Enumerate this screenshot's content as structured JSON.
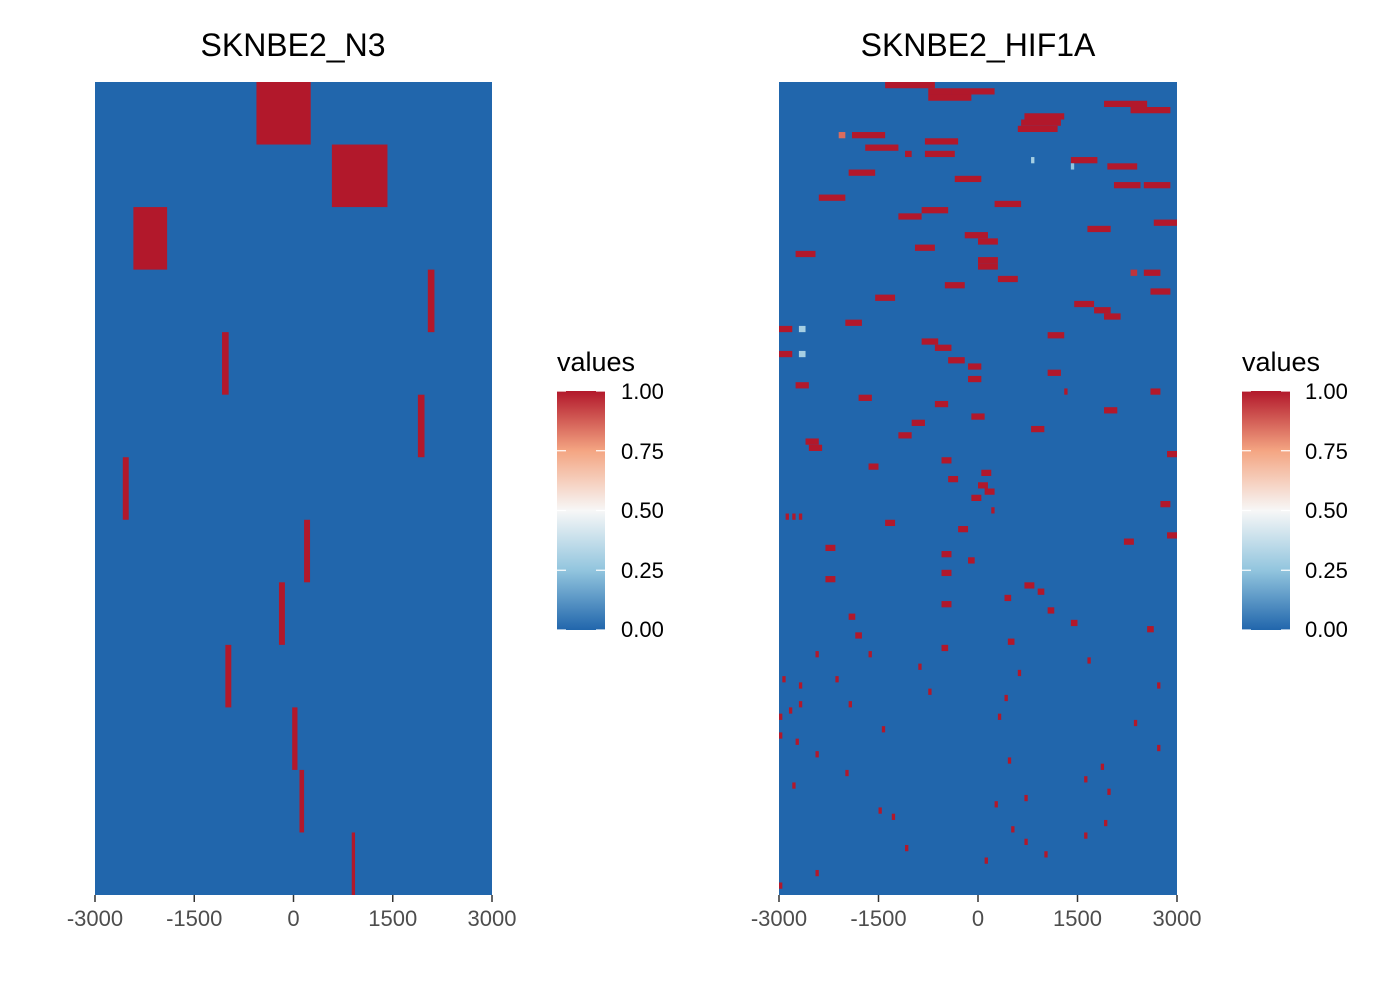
{
  "colors": {
    "low": "#2166AC",
    "high": "#B2182B"
  },
  "chart_data": [
    {
      "type": "heatmap",
      "title": "SKNBE2_N3",
      "xlim": [
        -3000,
        3000
      ],
      "xticks": [
        -3000,
        -1500,
        0,
        1500,
        3000
      ],
      "tick_labels": [
        "-3000",
        "-1500",
        "0",
        "1500",
        "3000"
      ],
      "rows": 13,
      "background_value": 0,
      "cells": [
        {
          "x0": -560,
          "x1": 260,
          "row": 0,
          "value": 1
        },
        {
          "x0": 580,
          "x1": 1420,
          "row": 1,
          "value": 1
        },
        {
          "x0": -2420,
          "x1": -1910,
          "row": 2,
          "value": 1
        },
        {
          "x0": 2030,
          "x1": 2130,
          "row": 3,
          "value": 1
        },
        {
          "x0": -1080,
          "x1": -980,
          "row": 4,
          "value": 1
        },
        {
          "x0": 1880,
          "x1": 1980,
          "row": 5,
          "value": 1
        },
        {
          "x0": -2580,
          "x1": -2490,
          "row": 6,
          "value": 1
        },
        {
          "x0": 160,
          "x1": 250,
          "row": 7,
          "value": 1
        },
        {
          "x0": -220,
          "x1": -130,
          "row": 8,
          "value": 1
        },
        {
          "x0": -1030,
          "x1": -940,
          "row": 9,
          "value": 1
        },
        {
          "x0": -20,
          "x1": 60,
          "row": 10,
          "value": 1
        },
        {
          "x0": 90,
          "x1": 160,
          "row": 11,
          "value": 1
        },
        {
          "x0": 880,
          "x1": 930,
          "row": 12,
          "value": 1
        }
      ],
      "legend": {
        "title": "values",
        "labels": [
          "1.00",
          "0.75",
          "0.50",
          "0.25",
          "0.00"
        ]
      }
    },
    {
      "type": "heatmap",
      "title": "SKNBE2_HIF1A",
      "xlim": [
        -3000,
        3000
      ],
      "xticks": [
        -3000,
        -1500,
        0,
        1500,
        3000
      ],
      "tick_labels": [
        "-3000",
        "-1500",
        "0",
        "1500",
        "3000"
      ],
      "rows": 130,
      "background_value": 0,
      "cells": [
        {
          "x0": -1400,
          "x1": -650,
          "row": 0,
          "value": 1
        },
        {
          "x0": -750,
          "x1": -400,
          "row": 1,
          "value": 1
        },
        {
          "x0": -400,
          "x1": 250,
          "row": 1,
          "value": 1
        },
        {
          "x0": -750,
          "x1": -100,
          "row": 2,
          "value": 1
        },
        {
          "x0": 1900,
          "x1": 2550,
          "row": 3,
          "value": 1
        },
        {
          "x0": 2300,
          "x1": 2900,
          "row": 4,
          "value": 1
        },
        {
          "x0": 700,
          "x1": 1300,
          "row": 5,
          "value": 1
        },
        {
          "x0": 650,
          "x1": 1250,
          "row": 6,
          "value": 1
        },
        {
          "x0": 600,
          "x1": 1200,
          "row": 7,
          "value": 1
        },
        {
          "x0": -2100,
          "x1": -2000,
          "row": 8,
          "value": 0.85
        },
        {
          "x0": -1900,
          "x1": -1400,
          "row": 8,
          "value": 1
        },
        {
          "x0": -800,
          "x1": -300,
          "row": 9,
          "value": 1
        },
        {
          "x0": -1700,
          "x1": -1200,
          "row": 10,
          "value": 1
        },
        {
          "x0": -1100,
          "x1": -1000,
          "row": 11,
          "value": 1
        },
        {
          "x0": -800,
          "x1": -350,
          "row": 11,
          "value": 1
        },
        {
          "x0": 1400,
          "x1": 1800,
          "row": 12,
          "value": 1
        },
        {
          "x0": 800,
          "x1": 850,
          "row": 12,
          "value": 0.3
        },
        {
          "x0": 1400,
          "x1": 1450,
          "row": 13,
          "value": 0.25
        },
        {
          "x0": 1950,
          "x1": 2400,
          "row": 13,
          "value": 1
        },
        {
          "x0": -1950,
          "x1": -1550,
          "row": 14,
          "value": 1
        },
        {
          "x0": -350,
          "x1": 50,
          "row": 15,
          "value": 1
        },
        {
          "x0": 2050,
          "x1": 2450,
          "row": 16,
          "value": 1
        },
        {
          "x0": 2500,
          "x1": 2900,
          "row": 16,
          "value": 1
        },
        {
          "x0": -2400,
          "x1": -2000,
          "row": 18,
          "value": 1
        },
        {
          "x0": 250,
          "x1": 650,
          "row": 19,
          "value": 1
        },
        {
          "x0": -850,
          "x1": -450,
          "row": 20,
          "value": 1
        },
        {
          "x0": -1200,
          "x1": -850,
          "row": 21,
          "value": 1
        },
        {
          "x0": 2650,
          "x1": 3000,
          "row": 22,
          "value": 1
        },
        {
          "x0": 1650,
          "x1": 2000,
          "row": 23,
          "value": 1
        },
        {
          "x0": -200,
          "x1": 150,
          "row": 24,
          "value": 1
        },
        {
          "x0": 0,
          "x1": 300,
          "row": 25,
          "value": 1
        },
        {
          "x0": -950,
          "x1": -650,
          "row": 26,
          "value": 1
        },
        {
          "x0": -2750,
          "x1": -2450,
          "row": 27,
          "value": 1
        },
        {
          "x0": 0,
          "x1": 300,
          "row": 28,
          "value": 1
        },
        {
          "x0": 0,
          "x1": 300,
          "row": 29,
          "value": 1
        },
        {
          "x0": 2300,
          "x1": 2400,
          "row": 30,
          "value": 0.95
        },
        {
          "x0": 2500,
          "x1": 2750,
          "row": 30,
          "value": 1
        },
        {
          "x0": 300,
          "x1": 600,
          "row": 31,
          "value": 1
        },
        {
          "x0": -500,
          "x1": -200,
          "row": 32,
          "value": 1
        },
        {
          "x0": 2600,
          "x1": 2900,
          "row": 33,
          "value": 1
        },
        {
          "x0": -1550,
          "x1": -1250,
          "row": 34,
          "value": 1
        },
        {
          "x0": 1450,
          "x1": 1750,
          "row": 35,
          "value": 1
        },
        {
          "x0": 1750,
          "x1": 2000,
          "row": 36,
          "value": 1
        },
        {
          "x0": 1900,
          "x1": 2150,
          "row": 37,
          "value": 1
        },
        {
          "x0": -2000,
          "x1": -1750,
          "row": 38,
          "value": 1
        },
        {
          "x0": -3000,
          "x1": -2800,
          "row": 39,
          "value": 1
        },
        {
          "x0": -2700,
          "x1": -2600,
          "row": 39,
          "value": 0.3
        },
        {
          "x0": 1050,
          "x1": 1300,
          "row": 40,
          "value": 1
        },
        {
          "x0": -850,
          "x1": -600,
          "row": 41,
          "value": 1
        },
        {
          "x0": -650,
          "x1": -400,
          "row": 42,
          "value": 1
        },
        {
          "x0": -3000,
          "x1": -2800,
          "row": 43,
          "value": 1
        },
        {
          "x0": -2700,
          "x1": -2600,
          "row": 43,
          "value": 0.3
        },
        {
          "x0": -450,
          "x1": -200,
          "row": 44,
          "value": 1
        },
        {
          "x0": -150,
          "x1": 50,
          "row": 45,
          "value": 1
        },
        {
          "x0": 1050,
          "x1": 1250,
          "row": 46,
          "value": 1
        },
        {
          "x0": -150,
          "x1": 50,
          "row": 47,
          "value": 1
        },
        {
          "x0": -2750,
          "x1": -2550,
          "row": 48,
          "value": 1
        },
        {
          "x0": 1300,
          "x1": 1350,
          "row": 49,
          "value": 1
        },
        {
          "x0": 2600,
          "x1": 2750,
          "row": 49,
          "value": 1
        },
        {
          "x0": -1800,
          "x1": -1600,
          "row": 50,
          "value": 1
        },
        {
          "x0": -650,
          "x1": -450,
          "row": 51,
          "value": 1
        },
        {
          "x0": 1900,
          "x1": 2100,
          "row": 52,
          "value": 1
        },
        {
          "x0": -100,
          "x1": 100,
          "row": 53,
          "value": 1
        },
        {
          "x0": -1000,
          "x1": -800,
          "row": 54,
          "value": 1
        },
        {
          "x0": 800,
          "x1": 1000,
          "row": 55,
          "value": 1
        },
        {
          "x0": -1200,
          "x1": -1000,
          "row": 56,
          "value": 1
        },
        {
          "x0": -2600,
          "x1": -2400,
          "row": 57,
          "value": 1
        },
        {
          "x0": -2550,
          "x1": -2350,
          "row": 58,
          "value": 1
        },
        {
          "x0": 2850,
          "x1": 3000,
          "row": 59,
          "value": 1
        },
        {
          "x0": -550,
          "x1": -400,
          "row": 60,
          "value": 1
        },
        {
          "x0": -1650,
          "x1": -1500,
          "row": 61,
          "value": 1
        },
        {
          "x0": 50,
          "x1": 200,
          "row": 62,
          "value": 1
        },
        {
          "x0": -450,
          "x1": -300,
          "row": 63,
          "value": 1
        },
        {
          "x0": 0,
          "x1": 150,
          "row": 64,
          "value": 1
        },
        {
          "x0": 100,
          "x1": 250,
          "row": 65,
          "value": 1
        },
        {
          "x0": -100,
          "x1": 50,
          "row": 66,
          "value": 1
        },
        {
          "x0": 2750,
          "x1": 2900,
          "row": 67,
          "value": 1
        },
        {
          "x0": 200,
          "x1": 250,
          "row": 68,
          "value": 1
        },
        {
          "x0": -2900,
          "x1": -2850,
          "row": 69,
          "value": 1
        },
        {
          "x0": -2800,
          "x1": -2750,
          "row": 69,
          "value": 1
        },
        {
          "x0": -2700,
          "x1": -2650,
          "row": 69,
          "value": 1
        },
        {
          "x0": -1400,
          "x1": -1250,
          "row": 70,
          "value": 1
        },
        {
          "x0": -300,
          "x1": -150,
          "row": 71,
          "value": 1
        },
        {
          "x0": 2850,
          "x1": 3000,
          "row": 72,
          "value": 1
        },
        {
          "x0": 2200,
          "x1": 2350,
          "row": 73,
          "value": 1
        },
        {
          "x0": -2300,
          "x1": -2150,
          "row": 74,
          "value": 1
        },
        {
          "x0": -550,
          "x1": -400,
          "row": 75,
          "value": 1
        },
        {
          "x0": -150,
          "x1": -50,
          "row": 76,
          "value": 1
        },
        {
          "x0": -550,
          "x1": -400,
          "row": 78,
          "value": 1
        },
        {
          "x0": -2300,
          "x1": -2150,
          "row": 79,
          "value": 1
        },
        {
          "x0": 700,
          "x1": 850,
          "row": 80,
          "value": 1
        },
        {
          "x0": 900,
          "x1": 1000,
          "row": 81,
          "value": 1
        },
        {
          "x0": 400,
          "x1": 500,
          "row": 82,
          "value": 1
        },
        {
          "x0": -550,
          "x1": -400,
          "row": 83,
          "value": 1
        },
        {
          "x0": 1050,
          "x1": 1150,
          "row": 84,
          "value": 1
        },
        {
          "x0": -1950,
          "x1": -1850,
          "row": 85,
          "value": 1
        },
        {
          "x0": 1400,
          "x1": 1500,
          "row": 86,
          "value": 1
        },
        {
          "x0": 2550,
          "x1": 2650,
          "row": 87,
          "value": 1
        },
        {
          "x0": -1850,
          "x1": -1750,
          "row": 88,
          "value": 1
        },
        {
          "x0": 450,
          "x1": 550,
          "row": 89,
          "value": 1
        },
        {
          "x0": -550,
          "x1": -450,
          "row": 90,
          "value": 1
        },
        {
          "x0": -2450,
          "x1": -2400,
          "row": 91,
          "value": 1
        },
        {
          "x0": -1650,
          "x1": -1600,
          "row": 91,
          "value": 1
        },
        {
          "x0": 1650,
          "x1": 1700,
          "row": 92,
          "value": 1
        },
        {
          "x0": -900,
          "x1": -850,
          "row": 93,
          "value": 1
        },
        {
          "x0": 600,
          "x1": 650,
          "row": 94,
          "value": 1
        },
        {
          "x0": -2950,
          "x1": -2900,
          "row": 95,
          "value": 1
        },
        {
          "x0": -2150,
          "x1": -2100,
          "row": 95,
          "value": 1
        },
        {
          "x0": -2700,
          "x1": -2650,
          "row": 96,
          "value": 1
        },
        {
          "x0": 2700,
          "x1": 2750,
          "row": 96,
          "value": 1
        },
        {
          "x0": -750,
          "x1": -700,
          "row": 97,
          "value": 1
        },
        {
          "x0": 400,
          "x1": 450,
          "row": 98,
          "value": 1
        },
        {
          "x0": -2700,
          "x1": -2650,
          "row": 99,
          "value": 1
        },
        {
          "x0": -1950,
          "x1": -1900,
          "row": 99,
          "value": 1
        },
        {
          "x0": -2850,
          "x1": -2800,
          "row": 100,
          "value": 1
        },
        {
          "x0": -3000,
          "x1": -2950,
          "row": 101,
          "value": 1
        },
        {
          "x0": 300,
          "x1": 350,
          "row": 101,
          "value": 1
        },
        {
          "x0": 2350,
          "x1": 2400,
          "row": 102,
          "value": 1
        },
        {
          "x0": -1450,
          "x1": -1400,
          "row": 103,
          "value": 1
        },
        {
          "x0": -3000,
          "x1": -2950,
          "row": 104,
          "value": 1
        },
        {
          "x0": -2750,
          "x1": -2700,
          "row": 105,
          "value": 1
        },
        {
          "x0": 2700,
          "x1": 2750,
          "row": 106,
          "value": 1
        },
        {
          "x0": -2450,
          "x1": -2400,
          "row": 107,
          "value": 1
        },
        {
          "x0": 450,
          "x1": 500,
          "row": 108,
          "value": 1
        },
        {
          "x0": 1850,
          "x1": 1900,
          "row": 109,
          "value": 1
        },
        {
          "x0": -2000,
          "x1": -1950,
          "row": 110,
          "value": 1
        },
        {
          "x0": 1600,
          "x1": 1650,
          "row": 111,
          "value": 1
        },
        {
          "x0": -2800,
          "x1": -2750,
          "row": 112,
          "value": 1
        },
        {
          "x0": 1950,
          "x1": 2000,
          "row": 113,
          "value": 1
        },
        {
          "x0": 700,
          "x1": 750,
          "row": 114,
          "value": 1
        },
        {
          "x0": 250,
          "x1": 300,
          "row": 115,
          "value": 1
        },
        {
          "x0": -1500,
          "x1": -1450,
          "row": 116,
          "value": 1
        },
        {
          "x0": -1300,
          "x1": -1250,
          "row": 117,
          "value": 1
        },
        {
          "x0": 1900,
          "x1": 1950,
          "row": 118,
          "value": 1
        },
        {
          "x0": 500,
          "x1": 550,
          "row": 119,
          "value": 1
        },
        {
          "x0": 1600,
          "x1": 1650,
          "row": 120,
          "value": 1
        },
        {
          "x0": 700,
          "x1": 750,
          "row": 121,
          "value": 1
        },
        {
          "x0": -1100,
          "x1": -1050,
          "row": 122,
          "value": 1
        },
        {
          "x0": 1000,
          "x1": 1050,
          "row": 123,
          "value": 1
        },
        {
          "x0": 100,
          "x1": 150,
          "row": 124,
          "value": 1
        },
        {
          "x0": -2450,
          "x1": -2400,
          "row": 126,
          "value": 1
        },
        {
          "x0": -3000,
          "x1": -2950,
          "row": 128,
          "value": 1
        }
      ],
      "legend": {
        "title": "values",
        "labels": [
          "1.00",
          "0.75",
          "0.50",
          "0.25",
          "0.00"
        ]
      }
    }
  ]
}
